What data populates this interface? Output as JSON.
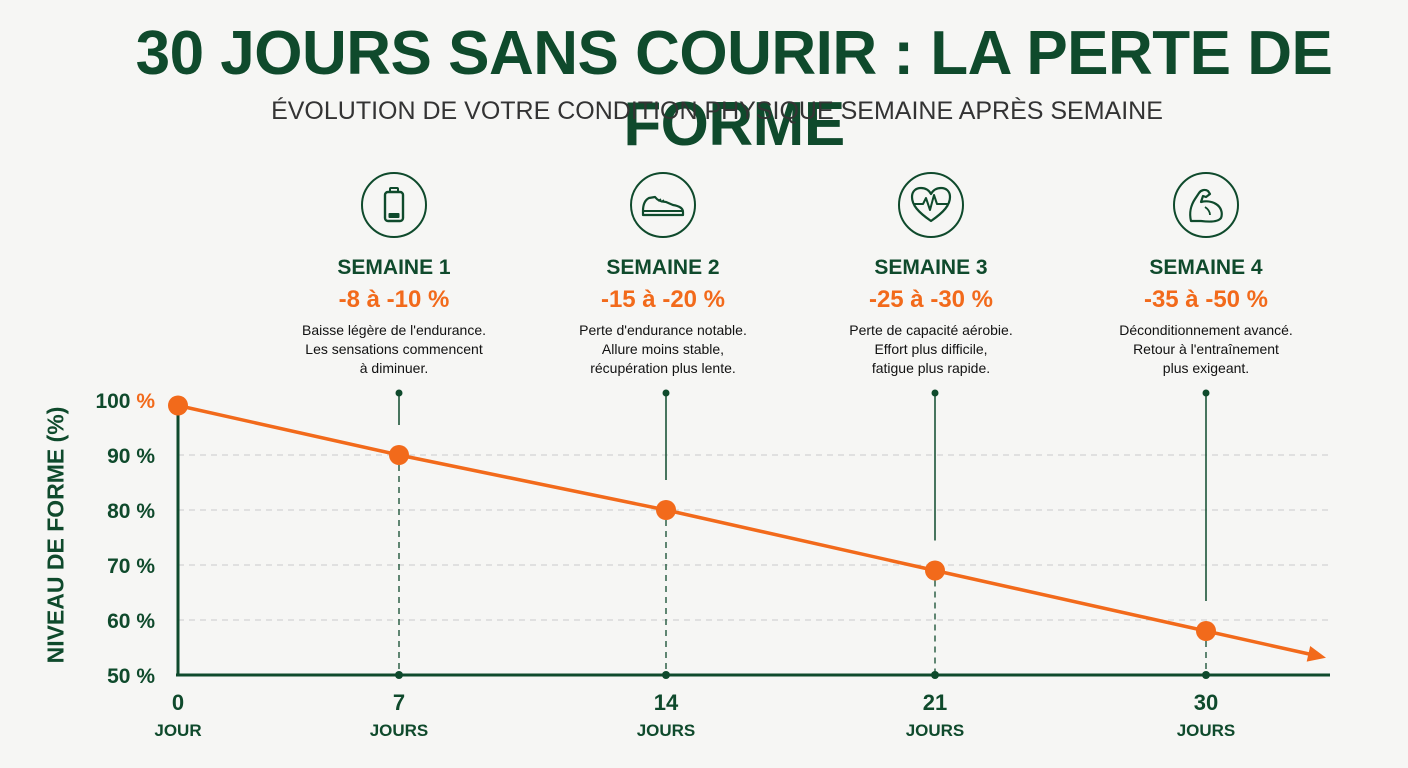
{
  "title": "30 JOURS SANS COURIR : LA PERTE DE FORME",
  "subtitle": "ÉVOLUTION DE VOTRE CONDITION PHYSIQUE SEMAINE APRÈS SEMAINE",
  "weeks": [
    {
      "label": "SEMAINE 1",
      "range": "-8 à -10 %",
      "desc": [
        "Baisse légère de l'endurance.",
        "Les sensations commencent",
        "à diminuer."
      ],
      "icon": "battery-icon"
    },
    {
      "label": "SEMAINE 2",
      "range": "-15 à -20 %",
      "desc": [
        "Perte d'endurance notable.",
        "Allure moins stable,",
        "récupération plus lente."
      ],
      "icon": "running-shoe-icon"
    },
    {
      "label": "SEMAINE 3",
      "range": "-25 à -30 %",
      "desc": [
        "Perte de capacité aérobie.",
        "Effort plus difficile,",
        "fatigue plus rapide."
      ],
      "icon": "heart-pulse-icon"
    },
    {
      "label": "SEMAINE 4",
      "range": "-35 à -50 %",
      "desc": [
        "Déconditionnement avancé.",
        "Retour à l'entraînement",
        "plus exigeant."
      ],
      "icon": "flexed-arm-icon"
    }
  ],
  "colors": {
    "primary": "#0f4a2c",
    "accent": "#f26a1b",
    "grid": "#d4d4d4"
  },
  "chart_data": {
    "type": "line",
    "title": "30 JOURS SANS COURIR : LA PERTE DE FORME",
    "ylabel": "NIVEAU DE FORME (%)",
    "xlabel": "",
    "x": [
      0,
      7,
      14,
      21,
      30
    ],
    "x_tick_labels": [
      "0",
      "7",
      "14",
      "21",
      "30"
    ],
    "x_tick_units": [
      "JOUR",
      "JOURS",
      "JOURS",
      "JOURS",
      "JOURS"
    ],
    "y": [
      99,
      90,
      80,
      69,
      58
    ],
    "y_ticks": [
      100,
      90,
      80,
      70,
      60,
      50
    ],
    "y_tick_labels": [
      "100",
      "90",
      "80",
      "70",
      "60",
      "50"
    ],
    "y_unit": "%",
    "ylim": [
      50,
      100
    ],
    "xlim": [
      0,
      30
    ],
    "grid": true,
    "trend_arrow": true
  }
}
